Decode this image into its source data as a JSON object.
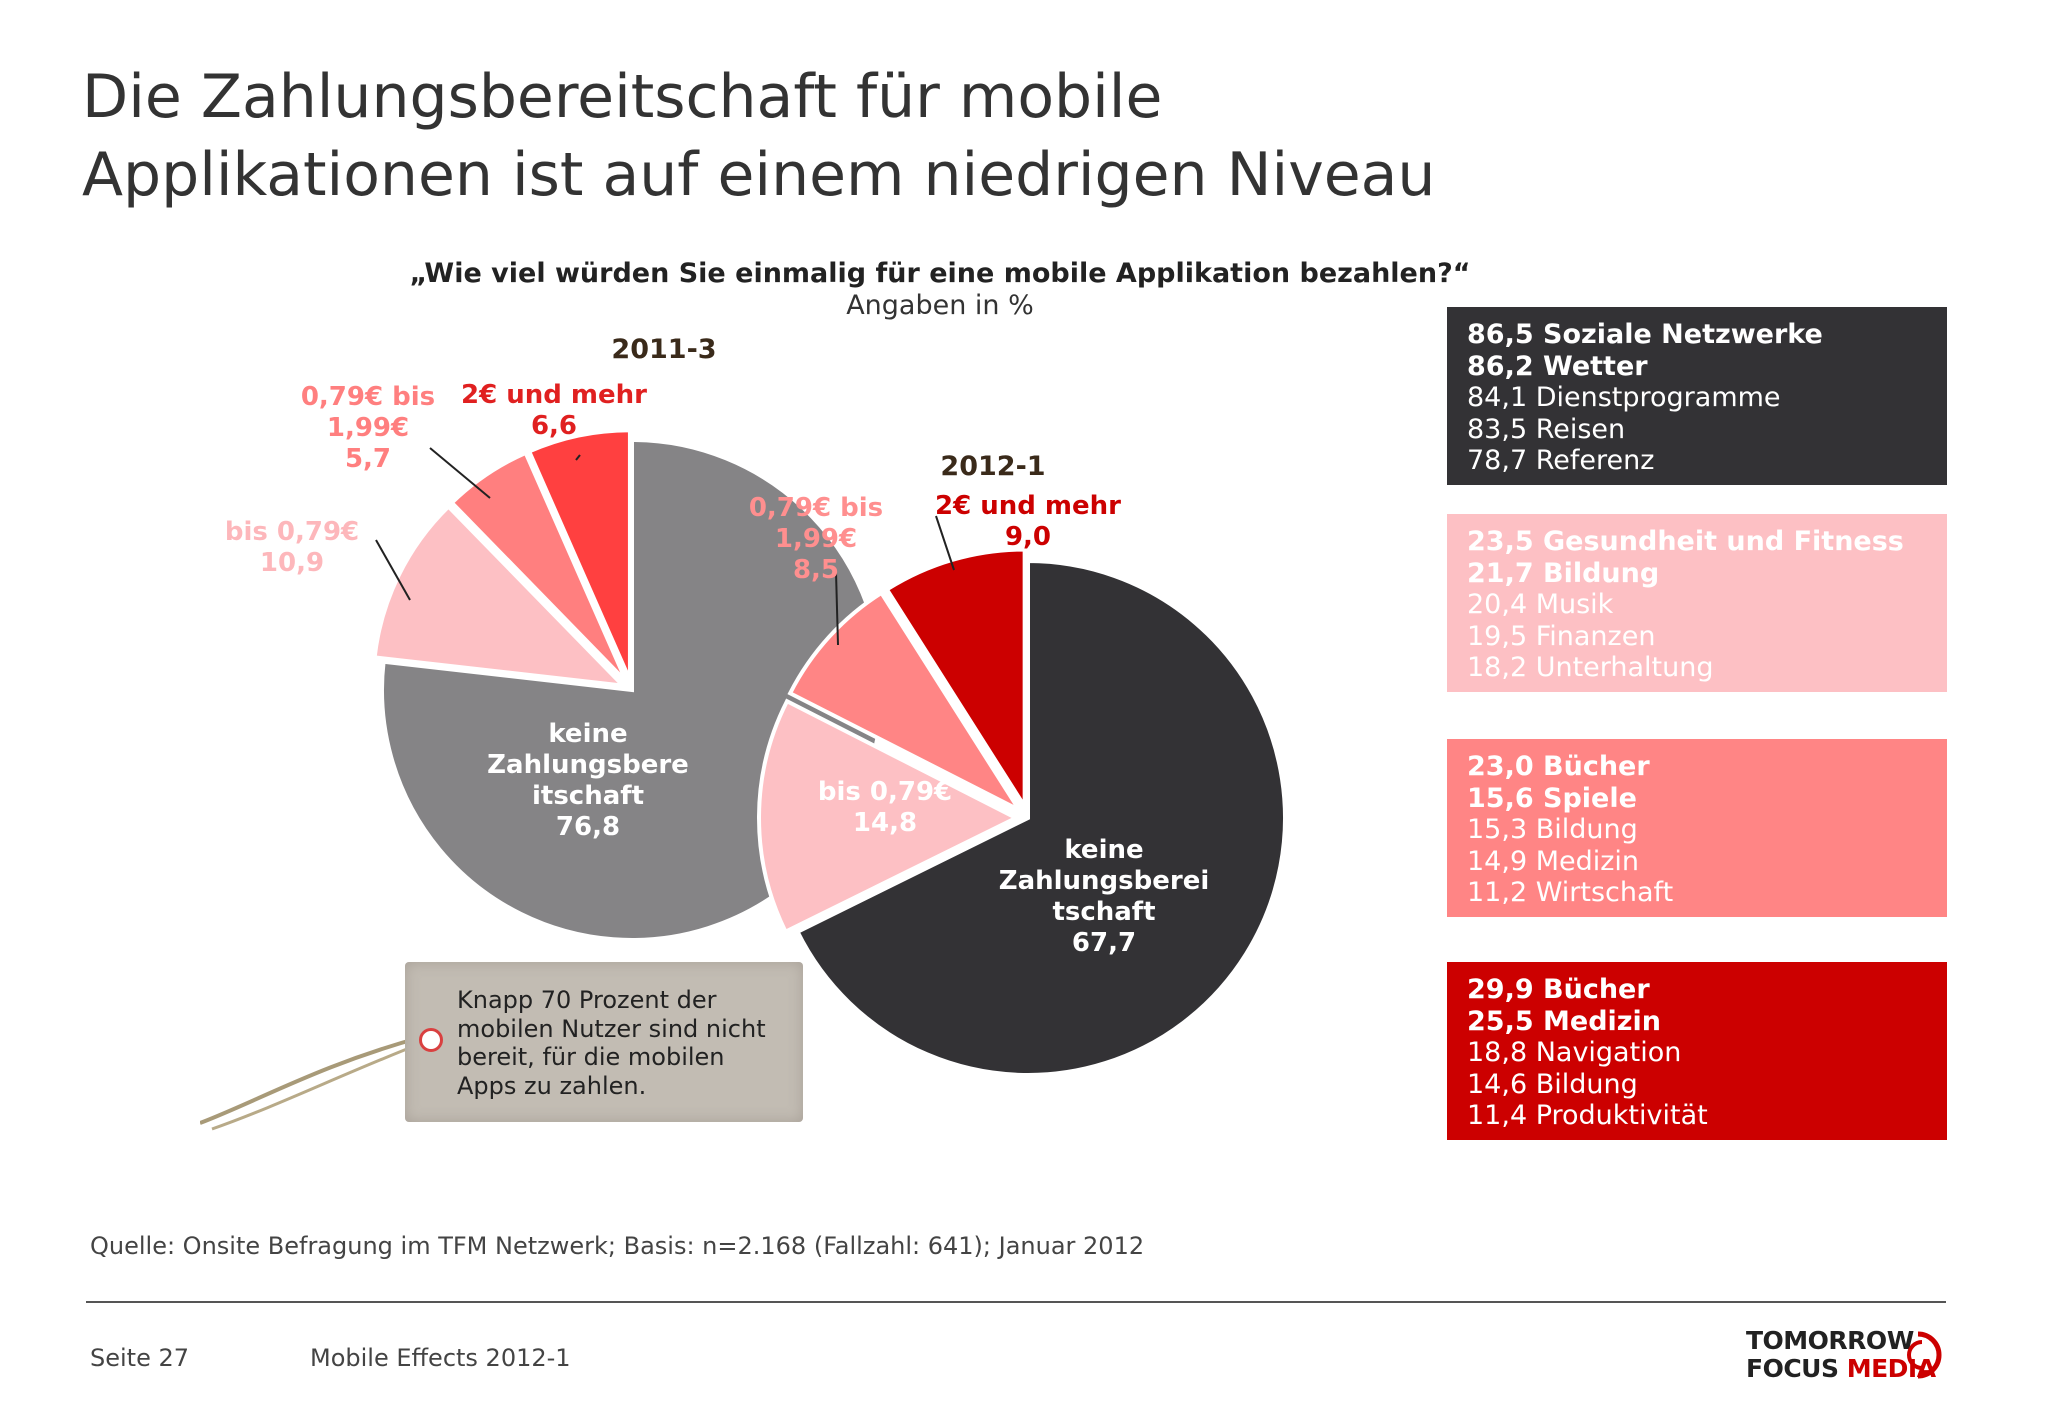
{
  "title": {
    "line1": "Die Zahlungsbereitschaft für mobile",
    "line2": "Applikationen ist auf einem niedrigen Niveau"
  },
  "question": "„Wie viel würden Sie einmalig für eine mobile Applikation bezahlen?“",
  "unit": "Angaben in %",
  "chart_data": [
    {
      "type": "pie",
      "title": "2011-3",
      "categories": [
        "keine Zahlungsbereitschaft",
        "bis 0,79€",
        "0,79€ bis 1,99€",
        "2€ und mehr"
      ],
      "values": [
        76.8,
        10.9,
        5.7,
        6.6
      ],
      "colors": [
        "#858486",
        "#fdc0c4",
        "#ff7f7f",
        "#ff4040"
      ],
      "labels": [
        [
          "keine",
          "Zahlungsbere",
          "itschaft",
          "76,8"
        ],
        [
          "bis 0,79€",
          "10,9"
        ],
        [
          "0,79€ bis",
          "1,99€",
          "5,7"
        ],
        [
          "2€ und mehr",
          "6,6"
        ]
      ]
    },
    {
      "type": "pie",
      "title": "2012-1",
      "categories": [
        "keine Zahlungsbereitschaft",
        "bis 0,79€",
        "0,79€ bis 1,99€",
        "2€ und mehr"
      ],
      "values": [
        67.7,
        14.8,
        8.5,
        9.0
      ],
      "colors": [
        "#333235",
        "#fdc0c4",
        "#ff8585",
        "#cc0000"
      ],
      "labels": [
        [
          "keine",
          "Zahlungsberei",
          "tschaft",
          "67,7"
        ],
        [
          "bis 0,79€",
          "14,8"
        ],
        [
          "0,79€ bis",
          "1,99€",
          "8,5"
        ],
        [
          "2€ und mehr",
          "9,0"
        ]
      ]
    }
  ],
  "panels": [
    {
      "lines": [
        {
          "text": "86,5 Soziale Netzwerke",
          "bold": true
        },
        {
          "text": "86,2 Wetter",
          "bold": true
        },
        {
          "text": "84,1 Dienstprogramme",
          "bold": false
        },
        {
          "text": "83,5 Reisen",
          "bold": false
        },
        {
          "text": "78,7 Referenz",
          "bold": false
        }
      ]
    },
    {
      "lines": [
        {
          "text": "23,5 Gesundheit und Fitness",
          "bold": true
        },
        {
          "text": "21,7 Bildung",
          "bold": true
        },
        {
          "text": "20,4 Musik",
          "bold": false
        },
        {
          "text": "19,5 Finanzen",
          "bold": false
        },
        {
          "text": "18,2 Unterhaltung",
          "bold": false
        }
      ]
    },
    {
      "lines": [
        {
          "text": "23,0 Bücher",
          "bold": true
        },
        {
          "text": "15,6 Spiele",
          "bold": true
        },
        {
          "text": "15,3 Bildung",
          "bold": false
        },
        {
          "text": "14,9 Medizin",
          "bold": false
        },
        {
          "text": "11,2 Wirtschaft",
          "bold": false
        }
      ]
    },
    {
      "lines": [
        {
          "text": "29,9 Bücher",
          "bold": true
        },
        {
          "text": "25,5 Medizin",
          "bold": true
        },
        {
          "text": "18,8 Navigation",
          "bold": false
        },
        {
          "text": "14,6 Bildung",
          "bold": false
        },
        {
          "text": "11,4 Produktivität",
          "bold": false
        }
      ]
    }
  ],
  "tag": {
    "lines": [
      "Knapp 70 Prozent der",
      "mobilen Nutzer sind nicht",
      "bereit, für die mobilen",
      "Apps zu zahlen."
    ]
  },
  "footer": {
    "source": "Quelle: Onsite Befragung im TFM Netzwerk; Basis: n=2.168 (Fallzahl: 641); Januar 2012",
    "page": "Seite 27",
    "report": "Mobile Effects 2012-1",
    "logo_line1": "TOMORROW",
    "logo_focus": "FOCUS",
    "logo_media": "MEDIA"
  }
}
